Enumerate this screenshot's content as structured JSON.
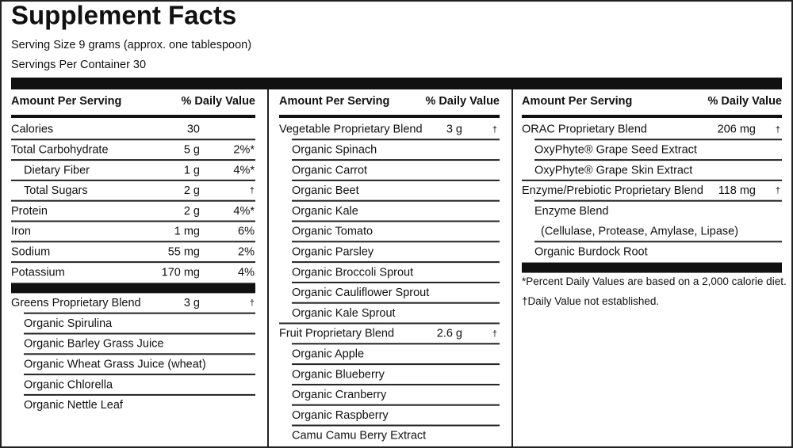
{
  "title": "Supplement Facts",
  "serving_size": "Serving Size  9 grams (approx. one tablespoon)",
  "servings_per_container": "Servings Per Container 30",
  "columns": [
    {
      "header": {
        "amount": "Amount Per Serving",
        "dv": "% Daily Value"
      },
      "sections": [
        {
          "rows": [
            {
              "name": "Calories",
              "amount": "30"
            },
            {
              "name": "Total Carbohydrate",
              "amount": "5 g",
              "dv": "2%*",
              "items": [
                {
                  "name": "Dietary Fiber",
                  "amount": "1 g",
                  "dv": "4%*"
                },
                {
                  "name": "Total Sugars",
                  "amount": "2 g",
                  "dv": "†"
                }
              ]
            },
            {
              "name": "Protein",
              "amount": "2 g",
              "dv": "4%*"
            },
            {
              "name": "Iron",
              "amount": "1 mg",
              "dv": "6%"
            },
            {
              "name": "Sodium",
              "amount": "55 mg",
              "dv": "2%"
            },
            {
              "name": "Potassium",
              "amount": "170 mg",
              "dv": "4%"
            }
          ]
        },
        {
          "rows": [
            {
              "name": "Greens Proprietary Blend",
              "amount": "3 g",
              "dv": "†",
              "items": [
                {
                  "name": "Organic Spirulina"
                },
                {
                  "name": "Organic Barley Grass Juice"
                },
                {
                  "name": "Organic Wheat Grass Juice (wheat)"
                },
                {
                  "name": "Organic Chlorella"
                },
                {
                  "name": "Organic Nettle Leaf"
                }
              ]
            }
          ]
        }
      ]
    },
    {
      "header": {
        "amount": "Amount Per Serving",
        "dv": "% Daily Value"
      },
      "sections": [
        {
          "rows": [
            {
              "name": "Vegetable Proprietary Blend",
              "amount": "3 g",
              "dv": "†",
              "items": [
                {
                  "name": "Organic Spinach"
                },
                {
                  "name": "Organic Carrot"
                },
                {
                  "name": "Organic Beet"
                },
                {
                  "name": "Organic Kale"
                },
                {
                  "name": "Organic Tomato"
                },
                {
                  "name": "Organic Parsley"
                },
                {
                  "name": "Organic Broccoli Sprout"
                },
                {
                  "name": "Organic Cauliflower Sprout"
                },
                {
                  "name": "Organic Kale Sprout"
                }
              ]
            },
            {
              "name": "Fruit Proprietary Blend",
              "amount": "2.6 g",
              "dv": "†",
              "items": [
                {
                  "name": "Organic Apple"
                },
                {
                  "name": "Organic Blueberry"
                },
                {
                  "name": "Organic Cranberry"
                },
                {
                  "name": "Organic Raspberry"
                },
                {
                  "name": "Camu Camu Berry Extract"
                }
              ]
            }
          ]
        }
      ]
    },
    {
      "header": {
        "amount": "Amount Per Serving",
        "dv": "% Daily Value"
      },
      "sections": [
        {
          "rows": [
            {
              "name": "ORAC Proprietary Blend",
              "amount": "206 mg",
              "dv": "†",
              "items": [
                {
                  "name": "OxyPhyte® Grape Seed Extract"
                },
                {
                  "name": "OxyPhyte® Grape Skin Extract"
                }
              ]
            },
            {
              "name": "Enzyme/Prebiotic Proprietary Blend",
              "amount": "118 mg",
              "dv": "†",
              "items": [
                {
                  "name": "Enzyme Blend",
                  "detail": "(Cellulase, Protease, Amylase, Lipase)"
                },
                {
                  "name": "Organic Burdock Root"
                }
              ]
            }
          ]
        }
      ],
      "footnotes": [
        "*Percent Daily Values are based on a 2,000 calorie diet.",
        "†Daily Value not established."
      ]
    }
  ]
}
